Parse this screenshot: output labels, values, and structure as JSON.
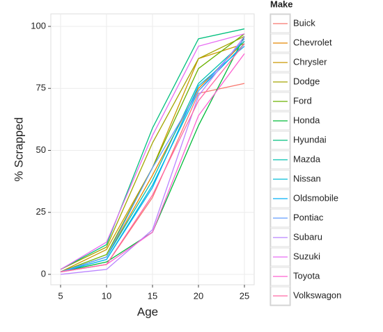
{
  "chart_data": {
    "type": "line",
    "x_label": "Age",
    "y_label": "% Scrapped",
    "legend_title": "Make",
    "x": [
      5,
      10,
      15,
      20,
      25
    ],
    "xlim": [
      3.94,
      26.06
    ],
    "xticks": [
      5,
      10,
      15,
      20,
      25
    ],
    "ylim": [
      -4.2,
      105.04
    ],
    "yticks": [
      0,
      25,
      50,
      75,
      100
    ],
    "grid": true,
    "legend": "right",
    "series": [
      {
        "name": "Buick",
        "color": "#F8766D",
        "values": [
          1,
          4,
          31,
          73,
          77
        ]
      },
      {
        "name": "Chevrolet",
        "color": "#E58700",
        "values": [
          1,
          7,
          40,
          75,
          94
        ]
      },
      {
        "name": "Chrysler",
        "color": "#C99800",
        "values": [
          1,
          10,
          43,
          87,
          93
        ]
      },
      {
        "name": "Dodge",
        "color": "#A3A500",
        "values": [
          2,
          11,
          53,
          87,
          96
        ]
      },
      {
        "name": "Ford",
        "color": "#6BB100",
        "values": [
          1,
          8,
          43,
          83,
          97
        ]
      },
      {
        "name": "Honda",
        "color": "#00BA38",
        "values": [
          1,
          5,
          17,
          60,
          96
        ]
      },
      {
        "name": "Hyundai",
        "color": "#00BF7D",
        "values": [
          2,
          12,
          59,
          95,
          99
        ]
      },
      {
        "name": "Mazda",
        "color": "#00C0AF",
        "values": [
          1,
          7,
          38,
          77,
          94
        ]
      },
      {
        "name": "Nissan",
        "color": "#00BCD8",
        "values": [
          1,
          6,
          36,
          74,
          93
        ]
      },
      {
        "name": "Oldsmobile",
        "color": "#00B0F6",
        "values": [
          1,
          6,
          35,
          76,
          92
        ]
      },
      {
        "name": "Pontiac",
        "color": "#619CFF",
        "values": [
          1,
          7,
          43,
          74,
          95
        ]
      },
      {
        "name": "Subaru",
        "color": "#B983FF",
        "values": [
          0,
          2,
          18,
          72,
          96
        ]
      },
      {
        "name": "Suzuki",
        "color": "#E76BF3",
        "values": [
          2,
          13,
          56,
          92,
          97
        ]
      },
      {
        "name": "Toyota",
        "color": "#FD61D1",
        "values": [
          1,
          4,
          17,
          64,
          89
        ]
      },
      {
        "name": "Volkswagon",
        "color": "#FF67A4",
        "values": [
          1,
          4,
          32,
          70,
          93
        ]
      }
    ]
  }
}
